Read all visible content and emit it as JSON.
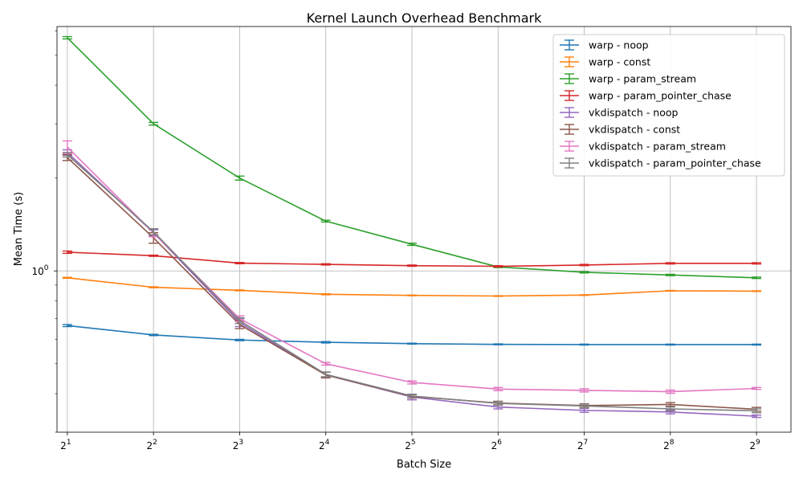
{
  "chart_data": {
    "type": "line",
    "title": "Kernel Launch Overhead Benchmark",
    "xlabel": "Batch Size",
    "ylabel": "Mean Time (s)",
    "x_scale": "log2",
    "y_scale": "log",
    "x": [
      2,
      4,
      8,
      16,
      32,
      64,
      128,
      256,
      512
    ],
    "x_tick_labels": [
      {
        "base": "2",
        "exp": "1"
      },
      {
        "base": "2",
        "exp": "2"
      },
      {
        "base": "2",
        "exp": "3"
      },
      {
        "base": "2",
        "exp": "4"
      },
      {
        "base": "2",
        "exp": "5"
      },
      {
        "base": "2",
        "exp": "6"
      },
      {
        "base": "2",
        "exp": "7"
      },
      {
        "base": "2",
        "exp": "8"
      },
      {
        "base": "2",
        "exp": "9"
      }
    ],
    "y_tick_labels": [
      {
        "base": "10",
        "exp": "0",
        "value": 1.0
      }
    ],
    "ylim": [
      0.3,
      6.2
    ],
    "grid": true,
    "legend_position": "top-right",
    "series": [
      {
        "name": "warp - noop",
        "color": "#1f77b4",
        "values": [
          0.665,
          0.62,
          0.597,
          0.587,
          0.581,
          0.578,
          0.577,
          0.577,
          0.577
        ],
        "errors": [
          0.005,
          0.003,
          0.003,
          0.003,
          0.002,
          0.002,
          0.002,
          0.002,
          0.002
        ]
      },
      {
        "name": "warp - const",
        "color": "#ff7f0e",
        "values": [
          0.95,
          0.885,
          0.865,
          0.84,
          0.833,
          0.829,
          0.835,
          0.862,
          0.86
        ],
        "errors": [
          0.003,
          0.003,
          0.003,
          0.003,
          0.002,
          0.002,
          0.002,
          0.002,
          0.002
        ]
      },
      {
        "name": "warp - param_stream",
        "color": "#2ca02c",
        "values": [
          5.7,
          3.0,
          2.0,
          1.45,
          1.22,
          1.03,
          0.99,
          0.97,
          0.95
        ],
        "errors": [
          0.05,
          0.03,
          0.03,
          0.01,
          0.01,
          0.005,
          0.005,
          0.005,
          0.005
        ]
      },
      {
        "name": "warp - param_pointer_chase",
        "color": "#d62728",
        "values": [
          1.15,
          1.12,
          1.06,
          1.05,
          1.04,
          1.035,
          1.045,
          1.058,
          1.058
        ],
        "errors": [
          0.01,
          0.005,
          0.005,
          0.005,
          0.005,
          0.005,
          0.005,
          0.005,
          0.005
        ]
      },
      {
        "name": "vkdispatch - noop",
        "color": "#9467bd",
        "values": [
          2.42,
          1.33,
          0.68,
          0.46,
          0.39,
          0.362,
          0.353,
          0.349,
          0.338
        ],
        "errors": [
          0.05,
          0.03,
          0.02,
          0.01,
          0.008,
          0.005,
          0.005,
          0.005,
          0.003
        ]
      },
      {
        "name": "vkdispatch - const",
        "color": "#8c564b",
        "values": [
          2.33,
          1.28,
          0.67,
          0.46,
          0.392,
          0.373,
          0.366,
          0.369,
          0.356
        ],
        "errors": [
          0.05,
          0.05,
          0.02,
          0.01,
          0.005,
          0.005,
          0.005,
          0.005,
          0.005
        ]
      },
      {
        "name": "vkdispatch - param_stream",
        "color": "#e377c2",
        "values": [
          2.52,
          1.33,
          0.7,
          0.5,
          0.435,
          0.414,
          0.41,
          0.406,
          0.416
        ],
        "errors": [
          0.12,
          0.04,
          0.015,
          0.005,
          0.005,
          0.005,
          0.005,
          0.005,
          0.003
        ]
      },
      {
        "name": "vkdispatch - param_pointer_chase",
        "color": "#7f7f7f",
        "values": [
          2.38,
          1.34,
          0.69,
          0.462,
          0.393,
          0.372,
          0.365,
          0.357,
          0.352
        ],
        "errors": [
          0.04,
          0.03,
          0.015,
          0.008,
          0.005,
          0.005,
          0.005,
          0.005,
          0.005
        ]
      }
    ]
  }
}
